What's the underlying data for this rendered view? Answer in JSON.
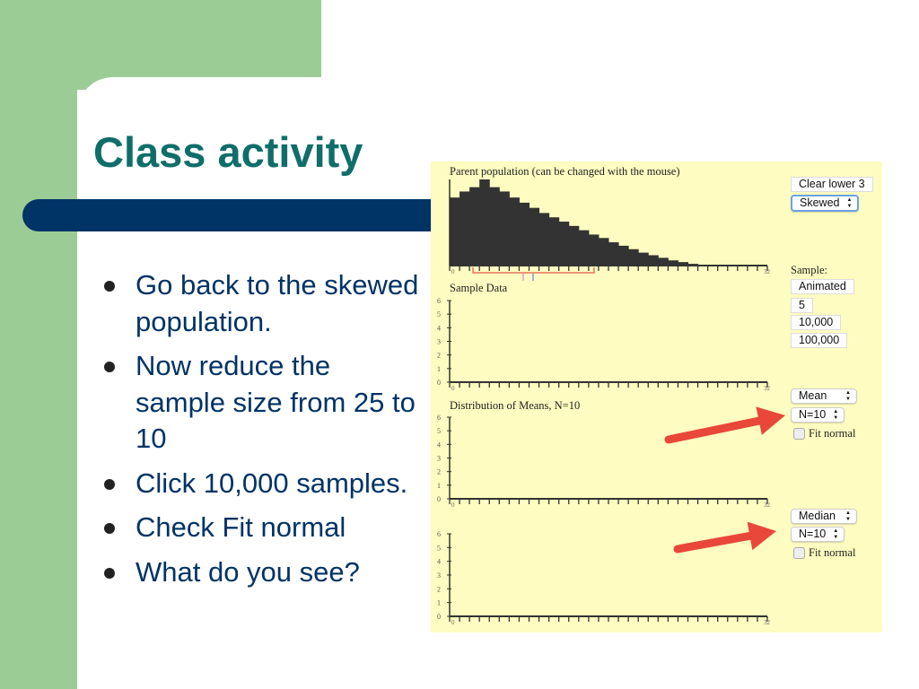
{
  "slide": {
    "title": "Class activity",
    "bullets": [
      "Go back to the skewed population.",
      "Now reduce the sample size from 25 to 10",
      "Click 10,000 samples.",
      "Check Fit normal",
      "What do you see?"
    ],
    "colors": {
      "green": "#9ccc95",
      "navy": "#003366",
      "title": "#0f6e6a",
      "panel": "#fefcc0",
      "arrow": "#e8473a"
    }
  },
  "applet": {
    "parent_title": "Parent population (can be changed with the mouse)",
    "sample_title": "Sample Data",
    "means_title": "Distribution of Means, N=10",
    "buttons": {
      "clear_lower": "Clear lower 3",
      "population": "Skewed",
      "sample_label": "Sample:",
      "animated": "Animated",
      "five": "5",
      "ten_thousand": "10,000",
      "hundred_thousand": "100,000",
      "stat1": "Mean",
      "n1": "N=10",
      "fit1": "Fit normal",
      "stat2": "Median",
      "n2": "N=10",
      "fit2": "Fit normal"
    }
  },
  "chart_data": [
    {
      "type": "bar",
      "title": "Parent population (can be changed with the mouse)",
      "xlim": [
        0,
        32
      ],
      "x_tick_labels": [
        "0",
        "32"
      ],
      "values": [
        79,
        86,
        91,
        100,
        91,
        86,
        79,
        73,
        67,
        61,
        56,
        51,
        46,
        41,
        36,
        32,
        27,
        23,
        19,
        15,
        12,
        9,
        6,
        4,
        2,
        1,
        0,
        0,
        0,
        0,
        0,
        0
      ]
    },
    {
      "type": "bar",
      "title": "Sample Data",
      "xlim": [
        0,
        32
      ],
      "ylim": [
        0,
        6
      ],
      "y_ticks": [
        "0",
        "1",
        "2",
        "3",
        "4",
        "5",
        "6"
      ],
      "x_tick_labels": [
        "0",
        "32"
      ],
      "values": []
    },
    {
      "type": "bar",
      "title": "Distribution of Means, N=10",
      "xlim": [
        0,
        32
      ],
      "ylim": [
        0,
        6
      ],
      "y_ticks": [
        "0",
        "1",
        "2",
        "3",
        "4",
        "5",
        "6"
      ],
      "x_tick_labels": [
        "0",
        "32"
      ],
      "values": []
    },
    {
      "type": "bar",
      "title": "",
      "xlim": [
        0,
        32
      ],
      "ylim": [
        0,
        6
      ],
      "y_ticks": [
        "0",
        "1",
        "2",
        "3",
        "4",
        "5",
        "6"
      ],
      "x_tick_labels": [
        "0",
        "32"
      ],
      "values": []
    }
  ]
}
